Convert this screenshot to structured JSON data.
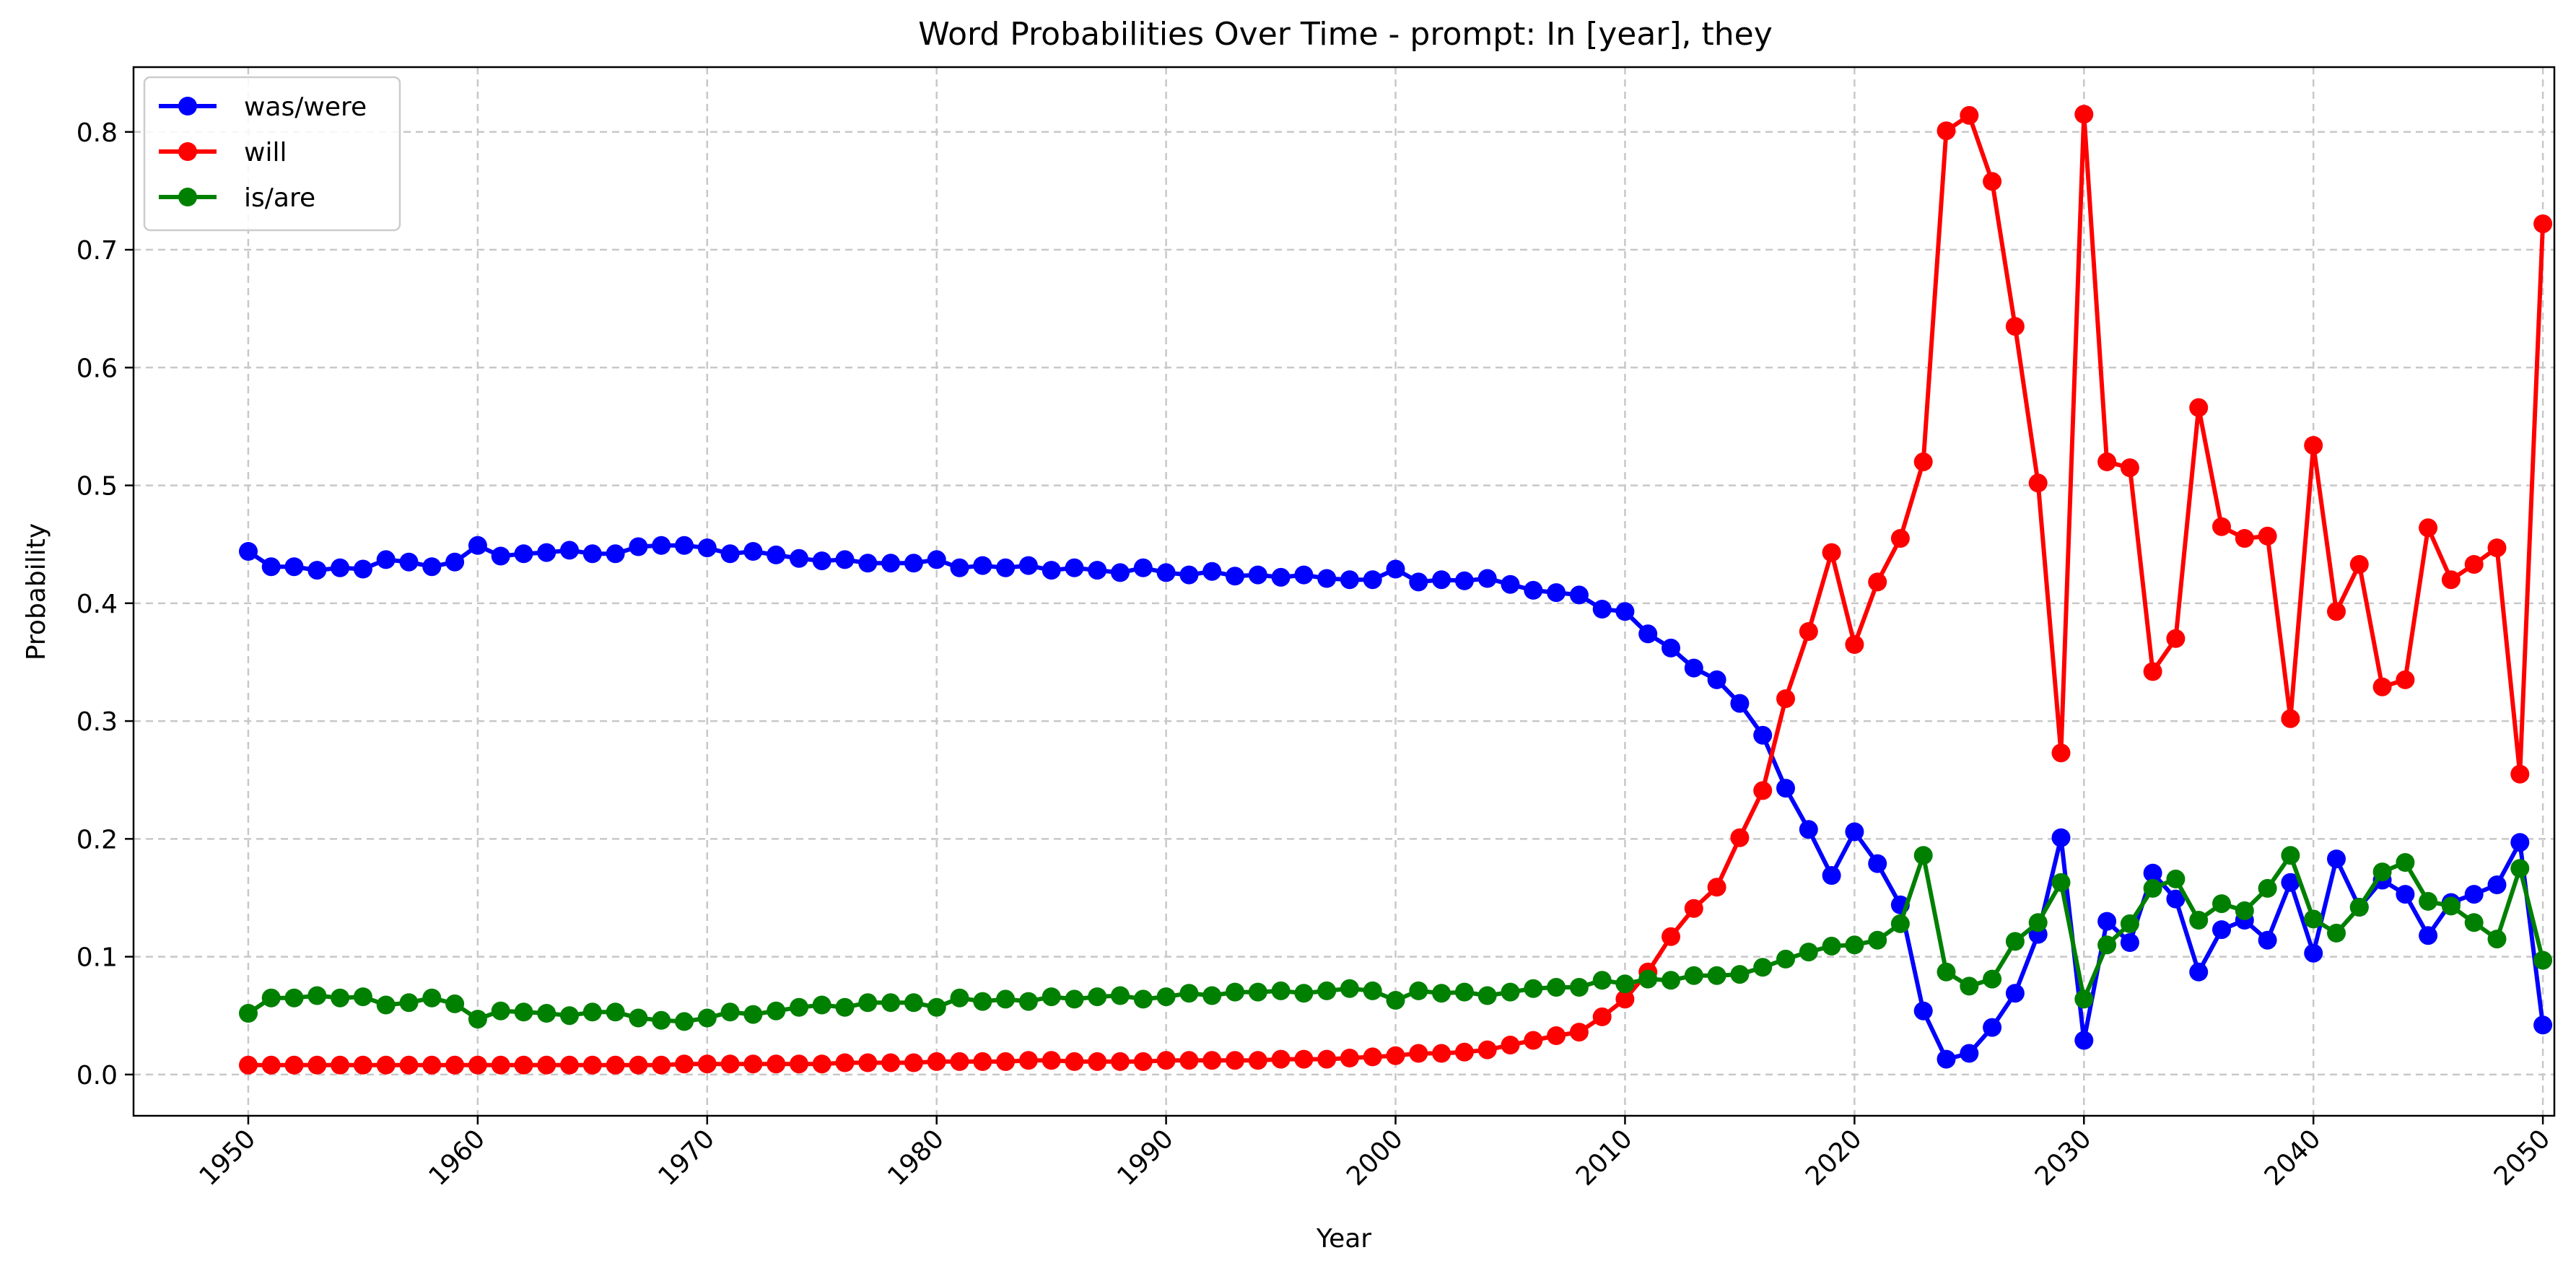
{
  "chart_data": {
    "type": "line",
    "title": "Word Probabilities Over Time - prompt: In [year], they",
    "xlabel": "Year",
    "ylabel": "Probability",
    "xlim": [
      1945,
      2050.5
    ],
    "ylim": [
      -0.035,
      0.855
    ],
    "xticks": [
      1950,
      1960,
      1970,
      1980,
      1990,
      2000,
      2010,
      2020,
      2030,
      2040,
      2050
    ],
    "yticks": [
      0.0,
      0.1,
      0.2,
      0.3,
      0.4,
      0.5,
      0.6,
      0.7,
      0.8
    ],
    "grid": true,
    "legend_position": "upper-left",
    "x": [
      1950,
      1951,
      1952,
      1953,
      1954,
      1955,
      1956,
      1957,
      1958,
      1959,
      1960,
      1961,
      1962,
      1963,
      1964,
      1965,
      1966,
      1967,
      1968,
      1969,
      1970,
      1971,
      1972,
      1973,
      1974,
      1975,
      1976,
      1977,
      1978,
      1979,
      1980,
      1981,
      1982,
      1983,
      1984,
      1985,
      1986,
      1987,
      1988,
      1989,
      1990,
      1991,
      1992,
      1993,
      1994,
      1995,
      1996,
      1997,
      1998,
      1999,
      2000,
      2001,
      2002,
      2003,
      2004,
      2005,
      2006,
      2007,
      2008,
      2009,
      2010,
      2011,
      2012,
      2013,
      2014,
      2015,
      2016,
      2017,
      2018,
      2019,
      2020,
      2021,
      2022,
      2023,
      2024,
      2025,
      2026,
      2027,
      2028,
      2029,
      2030,
      2031,
      2032,
      2033,
      2034,
      2035,
      2036,
      2037,
      2038,
      2039,
      2040,
      2041,
      2042,
      2043,
      2044,
      2045,
      2046,
      2047,
      2048,
      2049,
      2050
    ],
    "series": [
      {
        "name": "was/were",
        "color": "#0000ff",
        "values": [
          0.444,
          0.431,
          0.431,
          0.428,
          0.43,
          0.429,
          0.437,
          0.435,
          0.431,
          0.435,
          0.449,
          0.44,
          0.442,
          0.443,
          0.445,
          0.442,
          0.442,
          0.448,
          0.449,
          0.449,
          0.447,
          0.442,
          0.444,
          0.441,
          0.438,
          0.436,
          0.437,
          0.434,
          0.434,
          0.434,
          0.437,
          0.43,
          0.432,
          0.43,
          0.432,
          0.428,
          0.43,
          0.428,
          0.426,
          0.43,
          0.426,
          0.424,
          0.427,
          0.423,
          0.424,
          0.422,
          0.424,
          0.421,
          0.42,
          0.42,
          0.429,
          0.418,
          0.42,
          0.419,
          0.421,
          0.416,
          0.411,
          0.409,
          0.407,
          0.395,
          0.393,
          0.374,
          0.362,
          0.345,
          0.335,
          0.315,
          0.288,
          0.243,
          0.208,
          0.169,
          0.206,
          0.179,
          0.144,
          0.054,
          0.013,
          0.018,
          0.04,
          0.069,
          0.119,
          0.201,
          0.029,
          0.13,
          0.112,
          0.171,
          0.149,
          0.087,
          0.123,
          0.131,
          0.114,
          0.163,
          0.103,
          0.183,
          0.142,
          0.165,
          0.153,
          0.118,
          0.146,
          0.153,
          0.161,
          0.197,
          0.042
        ]
      },
      {
        "name": "will",
        "color": "#ff0000",
        "values": [
          0.008,
          0.008,
          0.008,
          0.008,
          0.008,
          0.008,
          0.008,
          0.008,
          0.008,
          0.008,
          0.008,
          0.008,
          0.008,
          0.008,
          0.008,
          0.008,
          0.008,
          0.008,
          0.008,
          0.009,
          0.009,
          0.009,
          0.009,
          0.009,
          0.009,
          0.009,
          0.01,
          0.01,
          0.01,
          0.01,
          0.011,
          0.011,
          0.011,
          0.011,
          0.012,
          0.012,
          0.011,
          0.011,
          0.011,
          0.011,
          0.012,
          0.012,
          0.012,
          0.012,
          0.012,
          0.013,
          0.013,
          0.013,
          0.014,
          0.015,
          0.016,
          0.018,
          0.018,
          0.019,
          0.021,
          0.025,
          0.029,
          0.033,
          0.036,
          0.049,
          0.064,
          0.087,
          0.117,
          0.141,
          0.159,
          0.201,
          0.241,
          0.319,
          0.376,
          0.443,
          0.365,
          0.418,
          0.455,
          0.52,
          0.801,
          0.814,
          0.758,
          0.635,
          0.502,
          0.273,
          0.815,
          0.52,
          0.515,
          0.342,
          0.37,
          0.566,
          0.465,
          0.455,
          0.457,
          0.302,
          0.534,
          0.393,
          0.433,
          0.329,
          0.335,
          0.464,
          0.42,
          0.433,
          0.447,
          0.255,
          0.722
        ]
      },
      {
        "name": "is/are",
        "color": "#008000",
        "values": [
          0.052,
          0.065,
          0.065,
          0.067,
          0.065,
          0.066,
          0.059,
          0.061,
          0.065,
          0.06,
          0.047,
          0.054,
          0.053,
          0.052,
          0.05,
          0.053,
          0.053,
          0.048,
          0.046,
          0.045,
          0.048,
          0.053,
          0.051,
          0.054,
          0.057,
          0.059,
          0.057,
          0.061,
          0.061,
          0.061,
          0.057,
          0.065,
          0.062,
          0.064,
          0.062,
          0.066,
          0.064,
          0.066,
          0.067,
          0.064,
          0.066,
          0.069,
          0.067,
          0.07,
          0.07,
          0.071,
          0.069,
          0.071,
          0.073,
          0.071,
          0.063,
          0.071,
          0.069,
          0.07,
          0.067,
          0.07,
          0.073,
          0.074,
          0.074,
          0.08,
          0.077,
          0.081,
          0.08,
          0.084,
          0.084,
          0.085,
          0.091,
          0.098,
          0.104,
          0.109,
          0.11,
          0.114,
          0.128,
          0.186,
          0.087,
          0.075,
          0.081,
          0.113,
          0.129,
          0.163,
          0.064,
          0.11,
          0.128,
          0.158,
          0.166,
          0.131,
          0.145,
          0.139,
          0.158,
          0.186,
          0.132,
          0.12,
          0.142,
          0.172,
          0.18,
          0.147,
          0.143,
          0.129,
          0.115,
          0.175,
          0.097
        ]
      }
    ]
  }
}
